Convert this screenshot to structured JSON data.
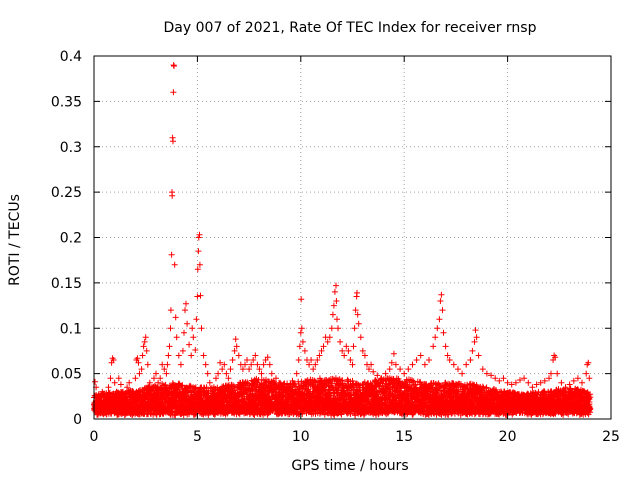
{
  "chart_data": {
    "type": "scatter",
    "title": "Day 007 of 2021, Rate Of TEC Index for receiver rnsp",
    "xlabel": "GPS time / hours",
    "ylabel": "ROTI / TECUs",
    "xlim": [
      0,
      25
    ],
    "ylim": [
      0,
      0.4
    ],
    "xticks": [
      0,
      5,
      10,
      15,
      20,
      25
    ],
    "xtick_labels": [
      "0",
      "5",
      "10",
      "15",
      "20",
      "25"
    ],
    "yticks": [
      0,
      0.05,
      0.1,
      0.15,
      0.2,
      0.25,
      0.3,
      0.35,
      0.4
    ],
    "ytick_labels": [
      "0",
      "0.05",
      "0.1",
      "0.15",
      "0.2",
      "0.25",
      "0.3",
      "0.35",
      "0.4"
    ],
    "grid": true,
    "marker": "+",
    "color": "#ff0000",
    "series": [
      {
        "name": "ROTI",
        "points": [
          [
            0.05,
            0.041
          ],
          [
            0.1,
            0.035
          ],
          [
            0.2,
            0.025
          ],
          [
            0.3,
            0.02
          ],
          [
            0.4,
            0.03
          ],
          [
            0.5,
            0.028
          ],
          [
            0.6,
            0.022
          ],
          [
            0.7,
            0.035
          ],
          [
            0.8,
            0.045
          ],
          [
            0.85,
            0.062
          ],
          [
            0.9,
            0.067
          ],
          [
            0.95,
            0.065
          ],
          [
            1.0,
            0.04
          ],
          [
            1.1,
            0.03
          ],
          [
            1.2,
            0.045
          ],
          [
            1.3,
            0.038
          ],
          [
            1.4,
            0.03
          ],
          [
            1.5,
            0.025
          ],
          [
            1.6,
            0.035
          ],
          [
            1.7,
            0.04
          ],
          [
            1.8,
            0.028
          ],
          [
            1.9,
            0.03
          ],
          [
            2.0,
            0.045
          ],
          [
            2.05,
            0.065
          ],
          [
            2.1,
            0.067
          ],
          [
            2.15,
            0.062
          ],
          [
            2.2,
            0.05
          ],
          [
            2.3,
            0.055
          ],
          [
            2.35,
            0.07
          ],
          [
            2.4,
            0.08
          ],
          [
            2.45,
            0.085
          ],
          [
            2.5,
            0.09
          ],
          [
            2.55,
            0.075
          ],
          [
            2.6,
            0.06
          ],
          [
            2.7,
            0.04
          ],
          [
            2.8,
            0.035
          ],
          [
            2.9,
            0.045
          ],
          [
            3.0,
            0.05
          ],
          [
            3.1,
            0.04
          ],
          [
            3.2,
            0.045
          ],
          [
            3.3,
            0.06
          ],
          [
            3.4,
            0.055
          ],
          [
            3.5,
            0.05
          ],
          [
            3.55,
            0.06
          ],
          [
            3.6,
            0.07
          ],
          [
            3.65,
            0.08
          ],
          [
            3.7,
            0.1
          ],
          [
            3.72,
            0.12
          ],
          [
            3.75,
            0.181
          ],
          [
            3.77,
            0.25
          ],
          [
            3.78,
            0.246
          ],
          [
            3.8,
            0.31
          ],
          [
            3.82,
            0.306
          ],
          [
            3.84,
            0.36
          ],
          [
            3.85,
            0.39
          ],
          [
            3.87,
            0.389
          ],
          [
            3.9,
            0.17
          ],
          [
            3.95,
            0.112
          ],
          [
            4.0,
            0.09
          ],
          [
            4.1,
            0.07
          ],
          [
            4.2,
            0.06
          ],
          [
            4.3,
            0.075
          ],
          [
            4.35,
            0.095
          ],
          [
            4.4,
            0.12
          ],
          [
            4.45,
            0.127
          ],
          [
            4.5,
            0.105
          ],
          [
            4.6,
            0.082
          ],
          [
            4.7,
            0.07
          ],
          [
            4.75,
            0.1
          ],
          [
            4.8,
            0.09
          ],
          [
            4.9,
            0.076
          ],
          [
            4.95,
            0.11
          ],
          [
            5.0,
            0.135
          ],
          [
            5.02,
            0.165
          ],
          [
            5.05,
            0.185
          ],
          [
            5.07,
            0.2
          ],
          [
            5.1,
            0.203
          ],
          [
            5.12,
            0.17
          ],
          [
            5.15,
            0.136
          ],
          [
            5.2,
            0.1
          ],
          [
            5.3,
            0.07
          ],
          [
            5.4,
            0.06
          ],
          [
            5.5,
            0.05
          ],
          [
            5.6,
            0.04
          ],
          [
            5.8,
            0.035
          ],
          [
            5.9,
            0.045
          ],
          [
            6.0,
            0.05
          ],
          [
            6.1,
            0.062
          ],
          [
            6.2,
            0.055
          ],
          [
            6.3,
            0.06
          ],
          [
            6.4,
            0.05
          ],
          [
            6.5,
            0.045
          ],
          [
            6.6,
            0.055
          ],
          [
            6.7,
            0.065
          ],
          [
            6.8,
            0.075
          ],
          [
            6.85,
            0.088
          ],
          [
            6.9,
            0.08
          ],
          [
            7.0,
            0.07
          ],
          [
            7.1,
            0.06
          ],
          [
            7.2,
            0.055
          ],
          [
            7.3,
            0.06
          ],
          [
            7.4,
            0.065
          ],
          [
            7.5,
            0.055
          ],
          [
            7.6,
            0.06
          ],
          [
            7.7,
            0.065
          ],
          [
            7.8,
            0.07
          ],
          [
            7.9,
            0.06
          ],
          [
            8.0,
            0.055
          ],
          [
            8.1,
            0.05
          ],
          [
            8.2,
            0.06
          ],
          [
            8.3,
            0.065
          ],
          [
            8.4,
            0.068
          ],
          [
            8.5,
            0.06
          ],
          [
            8.6,
            0.05
          ],
          [
            8.8,
            0.045
          ],
          [
            9.0,
            0.04
          ],
          [
            9.2,
            0.038
          ],
          [
            9.4,
            0.035
          ],
          [
            9.6,
            0.042
          ],
          [
            9.8,
            0.05
          ],
          [
            9.9,
            0.065
          ],
          [
            9.95,
            0.08
          ],
          [
            10.0,
            0.095
          ],
          [
            10.02,
            0.132
          ],
          [
            10.05,
            0.1
          ],
          [
            10.1,
            0.085
          ],
          [
            10.2,
            0.075
          ],
          [
            10.3,
            0.065
          ],
          [
            10.4,
            0.06
          ],
          [
            10.5,
            0.065
          ],
          [
            10.6,
            0.055
          ],
          [
            10.7,
            0.06
          ],
          [
            10.8,
            0.065
          ],
          [
            10.9,
            0.07
          ],
          [
            11.0,
            0.075
          ],
          [
            11.1,
            0.08
          ],
          [
            11.2,
            0.09
          ],
          [
            11.3,
            0.085
          ],
          [
            11.4,
            0.09
          ],
          [
            11.5,
            0.1
          ],
          [
            11.55,
            0.115
          ],
          [
            11.6,
            0.125
          ],
          [
            11.65,
            0.14
          ],
          [
            11.7,
            0.147
          ],
          [
            11.72,
            0.13
          ],
          [
            11.75,
            0.11
          ],
          [
            11.8,
            0.1
          ],
          [
            11.9,
            0.085
          ],
          [
            12.0,
            0.075
          ],
          [
            12.1,
            0.07
          ],
          [
            12.2,
            0.08
          ],
          [
            12.3,
            0.075
          ],
          [
            12.4,
            0.065
          ],
          [
            12.5,
            0.06
          ],
          [
            12.55,
            0.08
          ],
          [
            12.6,
            0.1
          ],
          [
            12.65,
            0.12
          ],
          [
            12.7,
            0.135
          ],
          [
            12.72,
            0.139
          ],
          [
            12.75,
            0.115
          ],
          [
            12.8,
            0.105
          ],
          [
            12.9,
            0.09
          ],
          [
            13.0,
            0.075
          ],
          [
            13.1,
            0.07
          ],
          [
            13.2,
            0.06
          ],
          [
            13.3,
            0.055
          ],
          [
            13.4,
            0.06
          ],
          [
            13.5,
            0.052
          ],
          [
            13.7,
            0.048
          ],
          [
            13.9,
            0.045
          ],
          [
            14.1,
            0.05
          ],
          [
            14.3,
            0.055
          ],
          [
            14.4,
            0.062
          ],
          [
            14.5,
            0.072
          ],
          [
            14.6,
            0.06
          ],
          [
            14.8,
            0.055
          ],
          [
            15.0,
            0.05
          ],
          [
            15.2,
            0.055
          ],
          [
            15.4,
            0.06
          ],
          [
            15.6,
            0.065
          ],
          [
            15.8,
            0.07
          ],
          [
            16.0,
            0.06
          ],
          [
            16.2,
            0.065
          ],
          [
            16.4,
            0.08
          ],
          [
            16.5,
            0.09
          ],
          [
            16.6,
            0.1
          ],
          [
            16.7,
            0.11
          ],
          [
            16.75,
            0.13
          ],
          [
            16.8,
            0.137
          ],
          [
            16.85,
            0.12
          ],
          [
            16.9,
            0.095
          ],
          [
            17.0,
            0.08
          ],
          [
            17.1,
            0.07
          ],
          [
            17.2,
            0.065
          ],
          [
            17.4,
            0.06
          ],
          [
            17.6,
            0.055
          ],
          [
            17.8,
            0.05
          ],
          [
            18.0,
            0.06
          ],
          [
            18.2,
            0.065
          ],
          [
            18.3,
            0.075
          ],
          [
            18.4,
            0.085
          ],
          [
            18.45,
            0.098
          ],
          [
            18.5,
            0.09
          ],
          [
            18.6,
            0.07
          ],
          [
            18.8,
            0.055
          ],
          [
            19.0,
            0.05
          ],
          [
            19.2,
            0.048
          ],
          [
            19.4,
            0.045
          ],
          [
            19.6,
            0.042
          ],
          [
            19.8,
            0.045
          ],
          [
            20.0,
            0.04
          ],
          [
            20.2,
            0.038
          ],
          [
            20.4,
            0.04
          ],
          [
            20.6,
            0.043
          ],
          [
            20.8,
            0.045
          ],
          [
            21.0,
            0.04
          ],
          [
            21.2,
            0.035
          ],
          [
            21.4,
            0.038
          ],
          [
            21.6,
            0.04
          ],
          [
            21.8,
            0.042
          ],
          [
            22.0,
            0.045
          ],
          [
            22.1,
            0.05
          ],
          [
            22.2,
            0.065
          ],
          [
            22.25,
            0.07
          ],
          [
            22.3,
            0.068
          ],
          [
            22.4,
            0.05
          ],
          [
            22.6,
            0.04
          ],
          [
            22.8,
            0.035
          ],
          [
            23.0,
            0.038
          ],
          [
            23.2,
            0.042
          ],
          [
            23.4,
            0.045
          ],
          [
            23.6,
            0.04
          ],
          [
            23.8,
            0.05
          ],
          [
            23.85,
            0.06
          ],
          [
            23.9,
            0.062
          ],
          [
            23.95,
            0.045
          ]
        ]
      }
    ],
    "dense_band": {
      "description_none": "",
      "x_range": [
        0,
        24
      ],
      "floor": [
        0.004,
        0.012
      ],
      "ceiling_by_hour": [
        0.028,
        0.03,
        0.032,
        0.038,
        0.04,
        0.035,
        0.035,
        0.04,
        0.045,
        0.04,
        0.042,
        0.045,
        0.045,
        0.04,
        0.045,
        0.045,
        0.04,
        0.04,
        0.04,
        0.035,
        0.03,
        0.028,
        0.032,
        0.035,
        0.03
      ]
    }
  }
}
